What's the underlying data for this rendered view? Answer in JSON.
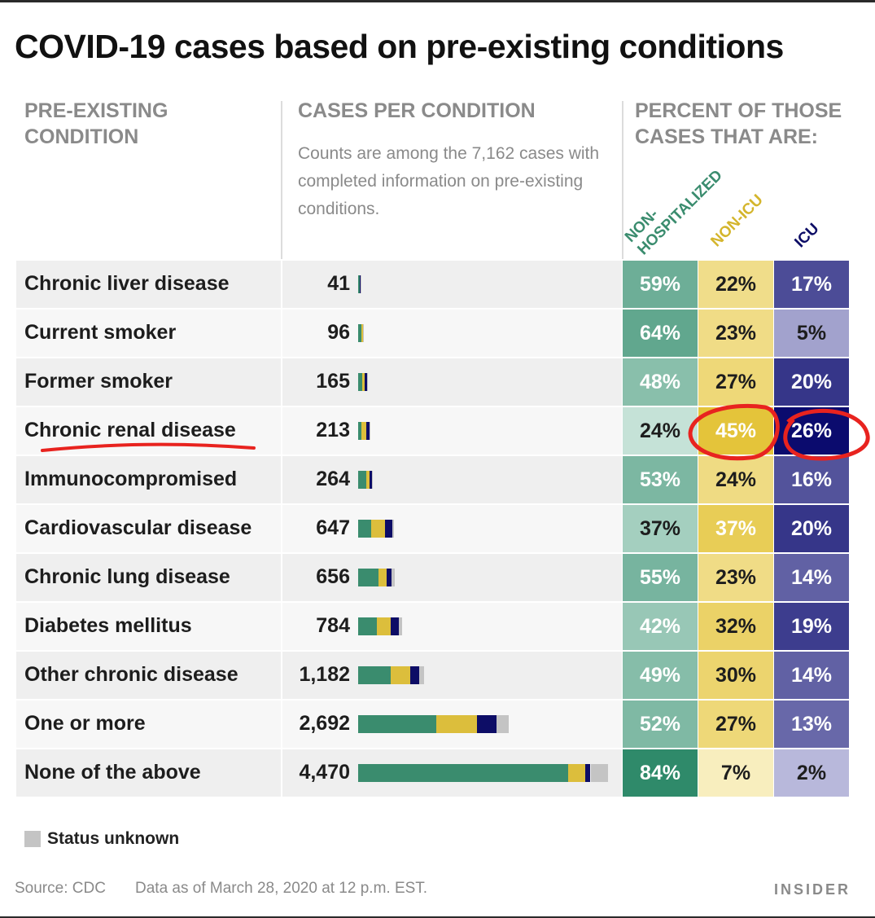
{
  "title": "COVID-19 cases based on pre-existing conditions",
  "headers": {
    "condition": "PRE-EXISTING\nCONDITION",
    "cases": "CASES PER CONDITION",
    "percent": "PERCENT OF THOSE\nCASES THAT ARE:"
  },
  "note": "Counts are among the 7,162 cases with completed information on pre-existing conditions.",
  "status_labels": {
    "non_hospitalized": "NON-\nHOSPITALIZED",
    "non_icu": "NON-ICU",
    "icu": "ICU"
  },
  "legend": {
    "status_unknown": "Status unknown"
  },
  "source": "Source: CDC",
  "data_as_of": "Data as of March 28, 2020 at 12 p.m. EST.",
  "brand": "INSIDER",
  "colors": {
    "green": "#3a8c6e",
    "yellow": "#dcbe3c",
    "navy": "#0d0d66",
    "gray": "#c4c4c4",
    "annotation": "#e8231f"
  },
  "chart_data": {
    "type": "table",
    "columns": [
      "Condition",
      "Cases",
      "Non-hospitalized",
      "Non-ICU",
      "ICU"
    ],
    "rows": [
      {
        "condition": "Chronic liver disease",
        "count_label": "41",
        "count": 41,
        "nonhosp": "59%",
        "nonicu": "22%",
        "icu": "17%"
      },
      {
        "condition": "Current smoker",
        "count_label": "96",
        "count": 96,
        "nonhosp": "64%",
        "nonicu": "23%",
        "icu": "5%"
      },
      {
        "condition": "Former smoker",
        "count_label": "165",
        "count": 165,
        "nonhosp": "48%",
        "nonicu": "27%",
        "icu": "20%"
      },
      {
        "condition": "Chronic renal disease",
        "count_label": "213",
        "count": 213,
        "nonhosp": "24%",
        "nonicu": "45%",
        "icu": "26%"
      },
      {
        "condition": "Immunocompromised",
        "count_label": "264",
        "count": 264,
        "nonhosp": "53%",
        "nonicu": "24%",
        "icu": "16%"
      },
      {
        "condition": "Cardiovascular disease",
        "count_label": "647",
        "count": 647,
        "nonhosp": "37%",
        "nonicu": "37%",
        "icu": "20%"
      },
      {
        "condition": "Chronic lung disease",
        "count_label": "656",
        "count": 656,
        "nonhosp": "55%",
        "nonicu": "23%",
        "icu": "14%"
      },
      {
        "condition": "Diabetes mellitus",
        "count_label": "784",
        "count": 784,
        "nonhosp": "42%",
        "nonicu": "32%",
        "icu": "19%"
      },
      {
        "condition": "Other chronic disease",
        "count_label": "1,182",
        "count": 1182,
        "nonhosp": "49%",
        "nonicu": "30%",
        "icu": "14%"
      },
      {
        "condition": "One or more",
        "count_label": "2,692",
        "count": 2692,
        "nonhosp": "52%",
        "nonicu": "27%",
        "icu": "13%"
      },
      {
        "condition": "None of the above",
        "count_label": "4,470",
        "count": 4470,
        "nonhosp": "84%",
        "nonicu": "7%",
        "icu": "2%"
      }
    ]
  }
}
